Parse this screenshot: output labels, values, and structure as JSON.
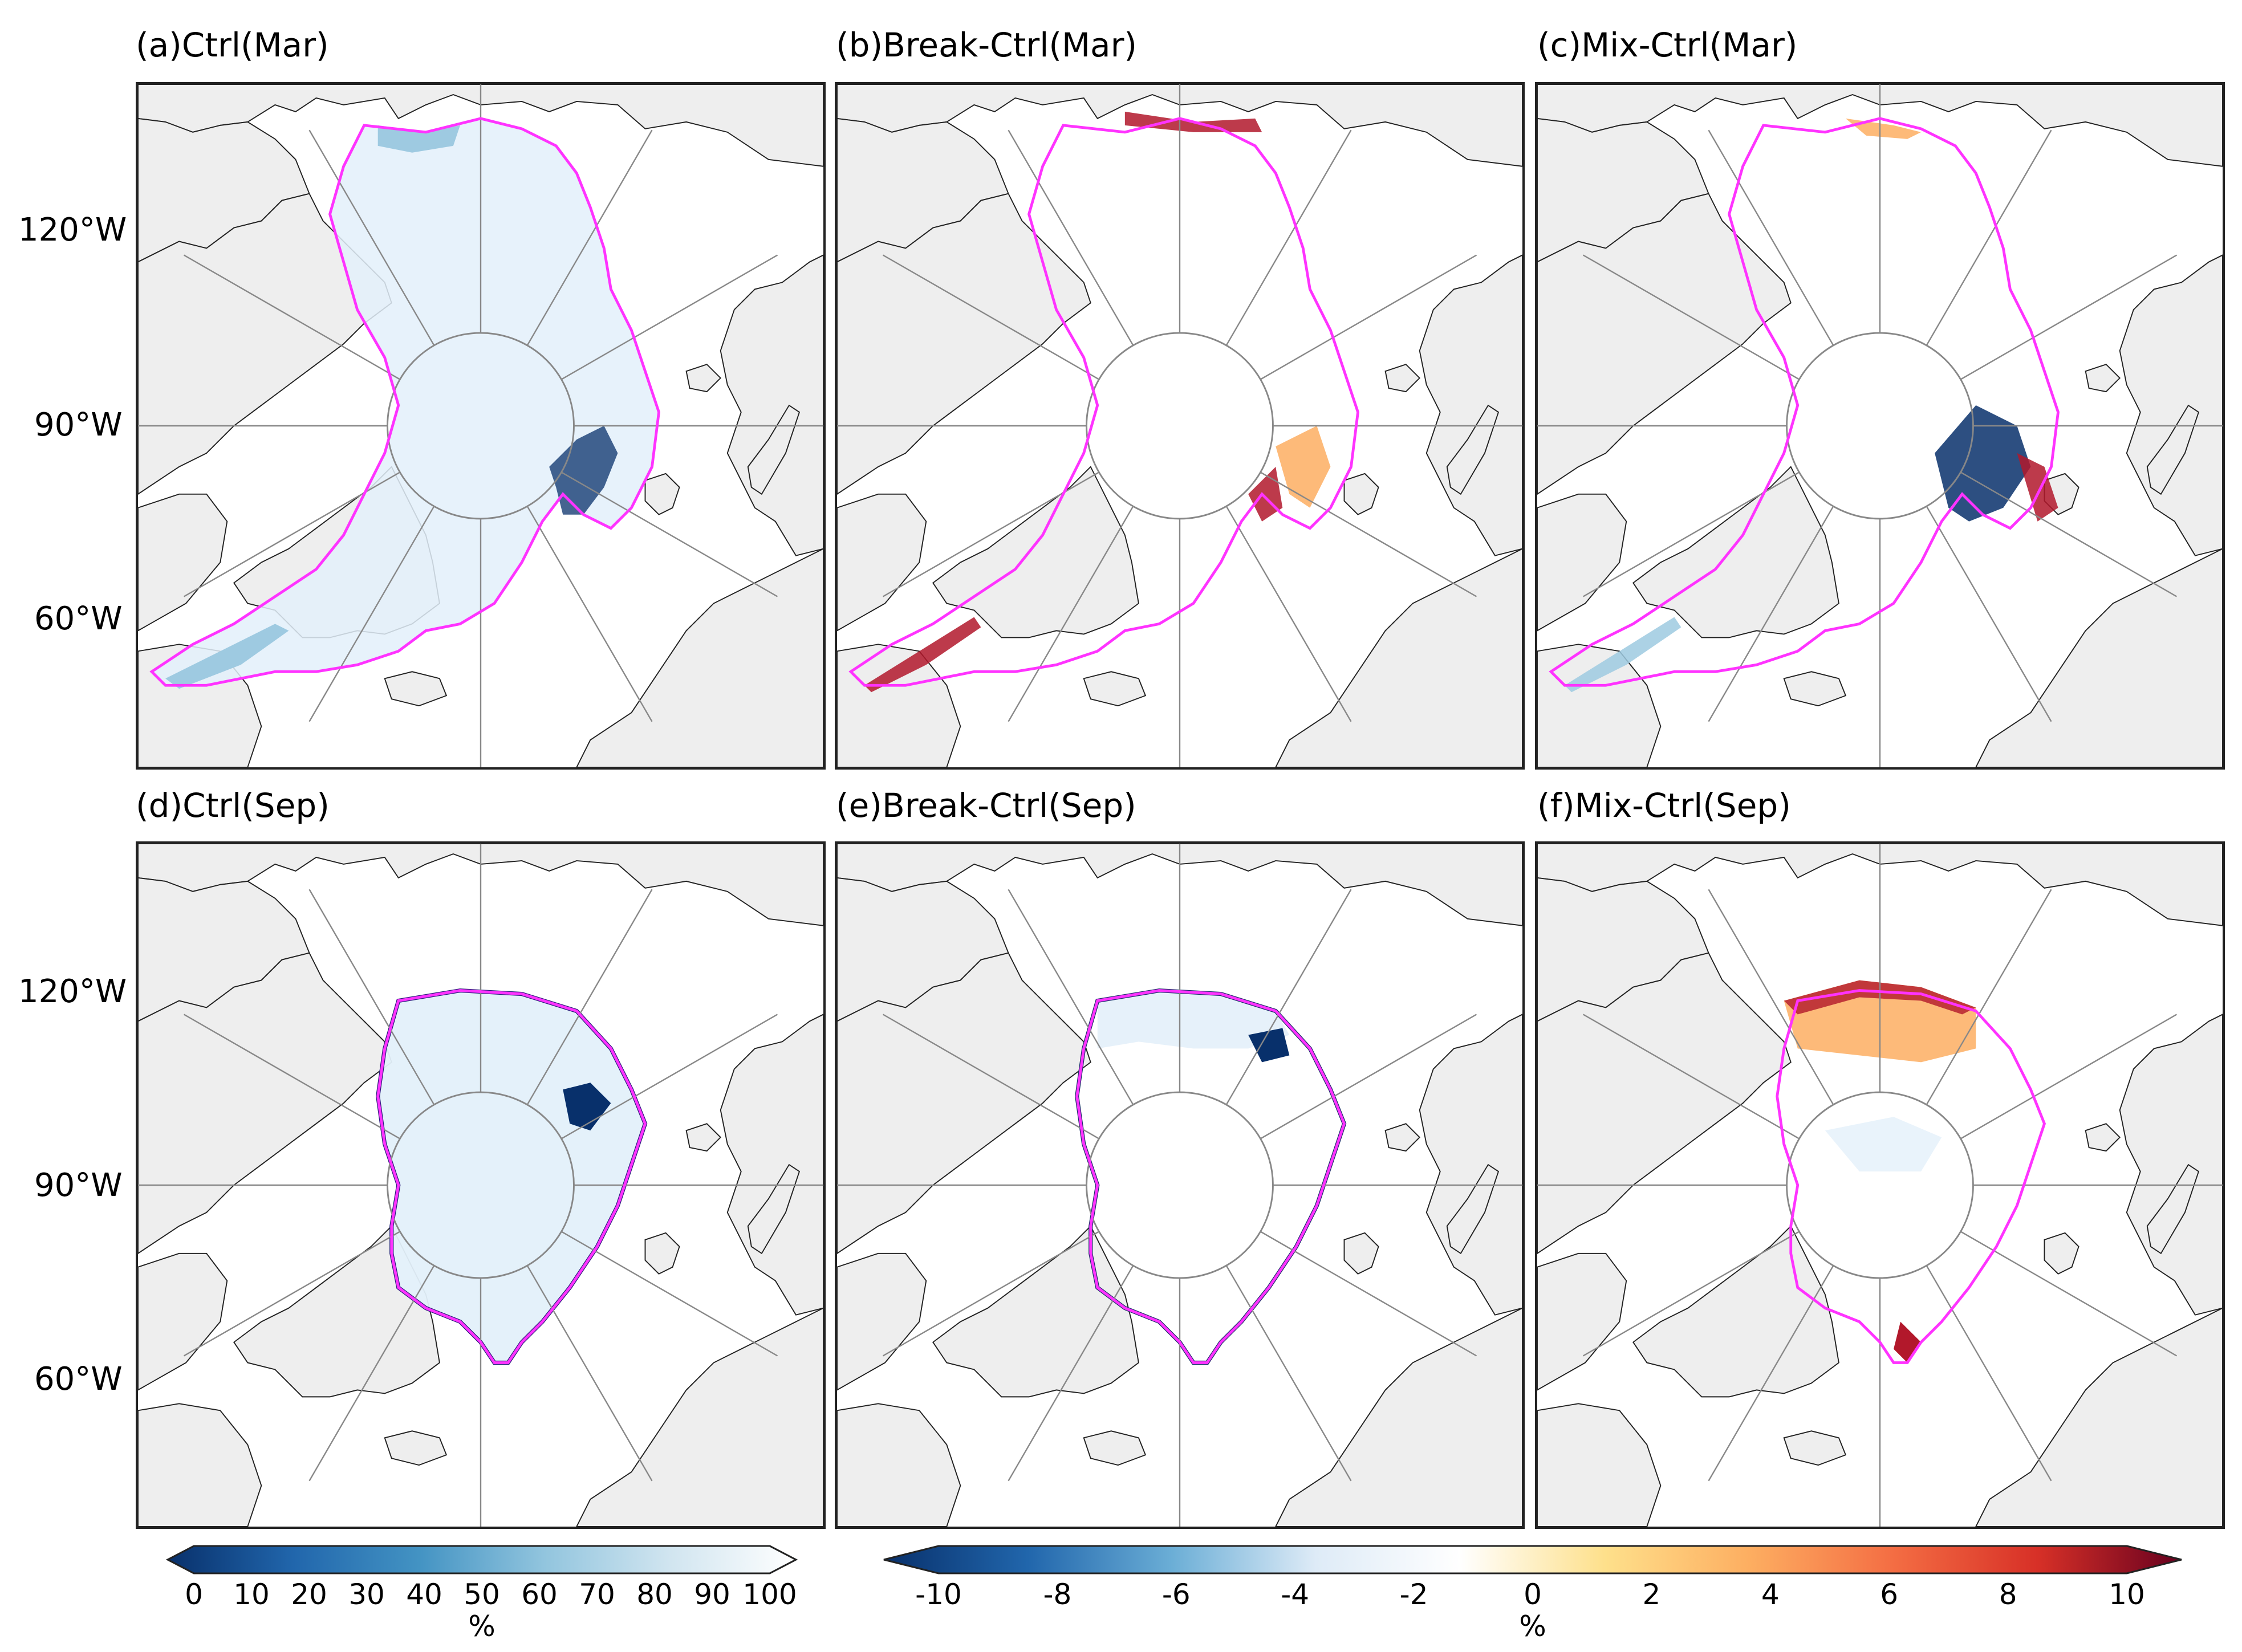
{
  "figure": {
    "panels": [
      {
        "id": "a",
        "title": "(a)Ctrl(Mar)",
        "variable": "sea ice concentration"
      },
      {
        "id": "b",
        "title": "(b)Break-Ctrl(Mar)",
        "variable": "sea ice concentration difference"
      },
      {
        "id": "c",
        "title": "(c)Mix-Ctrl(Mar)",
        "variable": "sea ice concentration difference"
      },
      {
        "id": "d",
        "title": "(d)Ctrl(Sep)",
        "variable": "sea ice concentration"
      },
      {
        "id": "e",
        "title": "(e)Break-Ctrl(Sep)",
        "variable": "sea ice concentration difference"
      },
      {
        "id": "f",
        "title": "(f)Mix-Ctrl(Sep)",
        "variable": "sea ice concentration difference"
      }
    ],
    "latitude_labels": [
      "120°W",
      "90°W",
      "60°W"
    ],
    "colorbar_concentration": {
      "ticks": [
        "0",
        "10",
        "20",
        "30",
        "40",
        "50",
        "60",
        "70",
        "80",
        "90",
        "100"
      ],
      "unit": "%",
      "colors": [
        "#08306b",
        "#2166ac",
        "#4393c3",
        "#92c5de",
        "#d1e5f0",
        "#ffffff"
      ]
    },
    "colorbar_difference": {
      "ticks": [
        "-10",
        "-8",
        "-6",
        "-4",
        "-2",
        "0",
        "2",
        "4",
        "6",
        "8",
        "10"
      ],
      "unit": "%",
      "colors": [
        "#08306b",
        "#2166ac",
        "#6baed6",
        "#deebf7",
        "#ffffff",
        "#fee08b",
        "#fdae61",
        "#f46d43",
        "#d73027",
        "#67001f"
      ]
    },
    "colors": {
      "land": "#eeeeee",
      "ocean": "#ffffff",
      "grid": "#888888",
      "coast": "#222222",
      "ice_edge": "#ff33ff",
      "ice_light": "#e3f0fa",
      "ice_mid": "#9ecae1",
      "ice_dark": "#08306b",
      "warm_light": "#fdae61",
      "warm_dark": "#b2182b"
    }
  }
}
